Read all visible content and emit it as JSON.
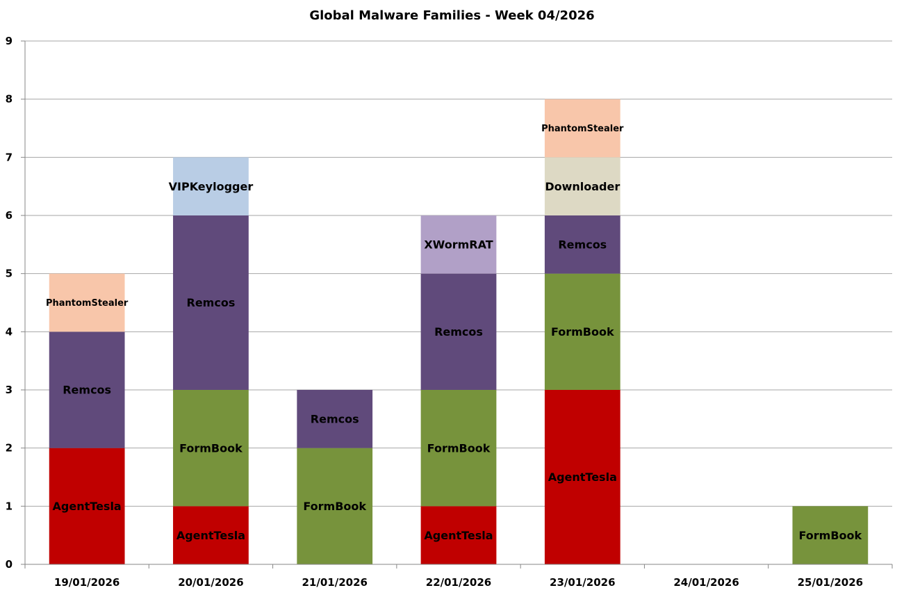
{
  "chart_data": {
    "type": "bar",
    "stacked": true,
    "title": "Global Malware Families - Week 04/2026",
    "xlabel": "",
    "ylabel": "",
    "ylim": [
      0,
      9
    ],
    "yticks": [
      "0",
      "1",
      "2",
      "3",
      "4",
      "5",
      "6",
      "7",
      "8",
      "9"
    ],
    "grid": true,
    "legend": "none",
    "categories": [
      "19/01/2026",
      "20/01/2026",
      "21/01/2026",
      "22/01/2026",
      "23/01/2026",
      "24/01/2026",
      "25/01/2026"
    ],
    "stack_order": [
      "AgentTesla",
      "FormBook",
      "Remcos",
      "XWormRAT",
      "VIPKeylogger",
      "Downloader",
      "PhantomStealer"
    ],
    "series": [
      {
        "name": "AgentTesla",
        "color": "#c00000",
        "values": [
          2,
          1,
          0,
          1,
          3,
          0,
          0
        ]
      },
      {
        "name": "FormBook",
        "color": "#77933c",
        "values": [
          0,
          2,
          2,
          2,
          2,
          0,
          1
        ]
      },
      {
        "name": "Remcos",
        "color": "#604a7b",
        "values": [
          2,
          3,
          1,
          2,
          1,
          0,
          0
        ]
      },
      {
        "name": "XWormRAT",
        "color": "#b1a0c7",
        "values": [
          0,
          0,
          0,
          1,
          0,
          0,
          0
        ]
      },
      {
        "name": "VIPKeylogger",
        "color": "#b9cde5",
        "values": [
          0,
          1,
          0,
          0,
          0,
          0,
          0
        ]
      },
      {
        "name": "Downloader",
        "color": "#ddd9c4",
        "values": [
          0,
          0,
          0,
          0,
          1,
          0,
          0
        ]
      },
      {
        "name": "PhantomStealer",
        "color": "#f8c6aa",
        "values": [
          1,
          0,
          0,
          0,
          1,
          0,
          0
        ]
      }
    ]
  },
  "colors": {
    "gridline": "#a6a6a6",
    "axis": "#868686",
    "background": "#ffffff"
  }
}
